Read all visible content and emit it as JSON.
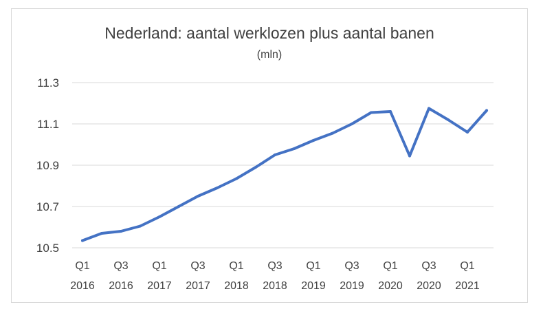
{
  "chart_data": {
    "type": "line",
    "title": "Nederland: aantal werklozen plus aantal banen",
    "subtitle": "(mln)",
    "xlabel": "",
    "ylabel": "",
    "ylim": [
      10.5,
      11.3
    ],
    "yticks": [
      "10.5",
      "10.7",
      "10.9",
      "11.1",
      "11.3"
    ],
    "grid": true,
    "legend": "none",
    "color": "#4472c4",
    "categories": [
      "Q1 2016",
      "Q2 2016",
      "Q3 2016",
      "Q4 2016",
      "Q1 2017",
      "Q2 2017",
      "Q3 2017",
      "Q4 2017",
      "Q1 2018",
      "Q2 2018",
      "Q3 2018",
      "Q4 2018",
      "Q1 2019",
      "Q2 2019",
      "Q3 2019",
      "Q4 2019",
      "Q1 2020",
      "Q2 2020",
      "Q3 2020",
      "Q4 2020",
      "Q1 2021",
      "Q2 2021"
    ],
    "tick_labels": [
      {
        "index": 0,
        "top": "Q1",
        "bottom": "2016"
      },
      {
        "index": 2,
        "top": "Q3",
        "bottom": "2016"
      },
      {
        "index": 4,
        "top": "Q1",
        "bottom": "2017"
      },
      {
        "index": 6,
        "top": "Q3",
        "bottom": "2017"
      },
      {
        "index": 8,
        "top": "Q1",
        "bottom": "2018"
      },
      {
        "index": 10,
        "top": "Q3",
        "bottom": "2018"
      },
      {
        "index": 12,
        "top": "Q1",
        "bottom": "2019"
      },
      {
        "index": 14,
        "top": "Q3",
        "bottom": "2019"
      },
      {
        "index": 16,
        "top": "Q1",
        "bottom": "2020"
      },
      {
        "index": 18,
        "top": "Q3",
        "bottom": "2020"
      },
      {
        "index": 20,
        "top": "Q1",
        "bottom": "2021"
      }
    ],
    "series": [
      {
        "values": [
          10.535,
          10.57,
          10.58,
          10.605,
          10.65,
          10.7,
          10.75,
          10.79,
          10.835,
          10.89,
          10.95,
          10.98,
          11.02,
          11.055,
          11.1,
          11.155,
          11.16,
          10.945,
          11.175,
          11.12,
          11.06,
          11.165
        ]
      }
    ]
  }
}
